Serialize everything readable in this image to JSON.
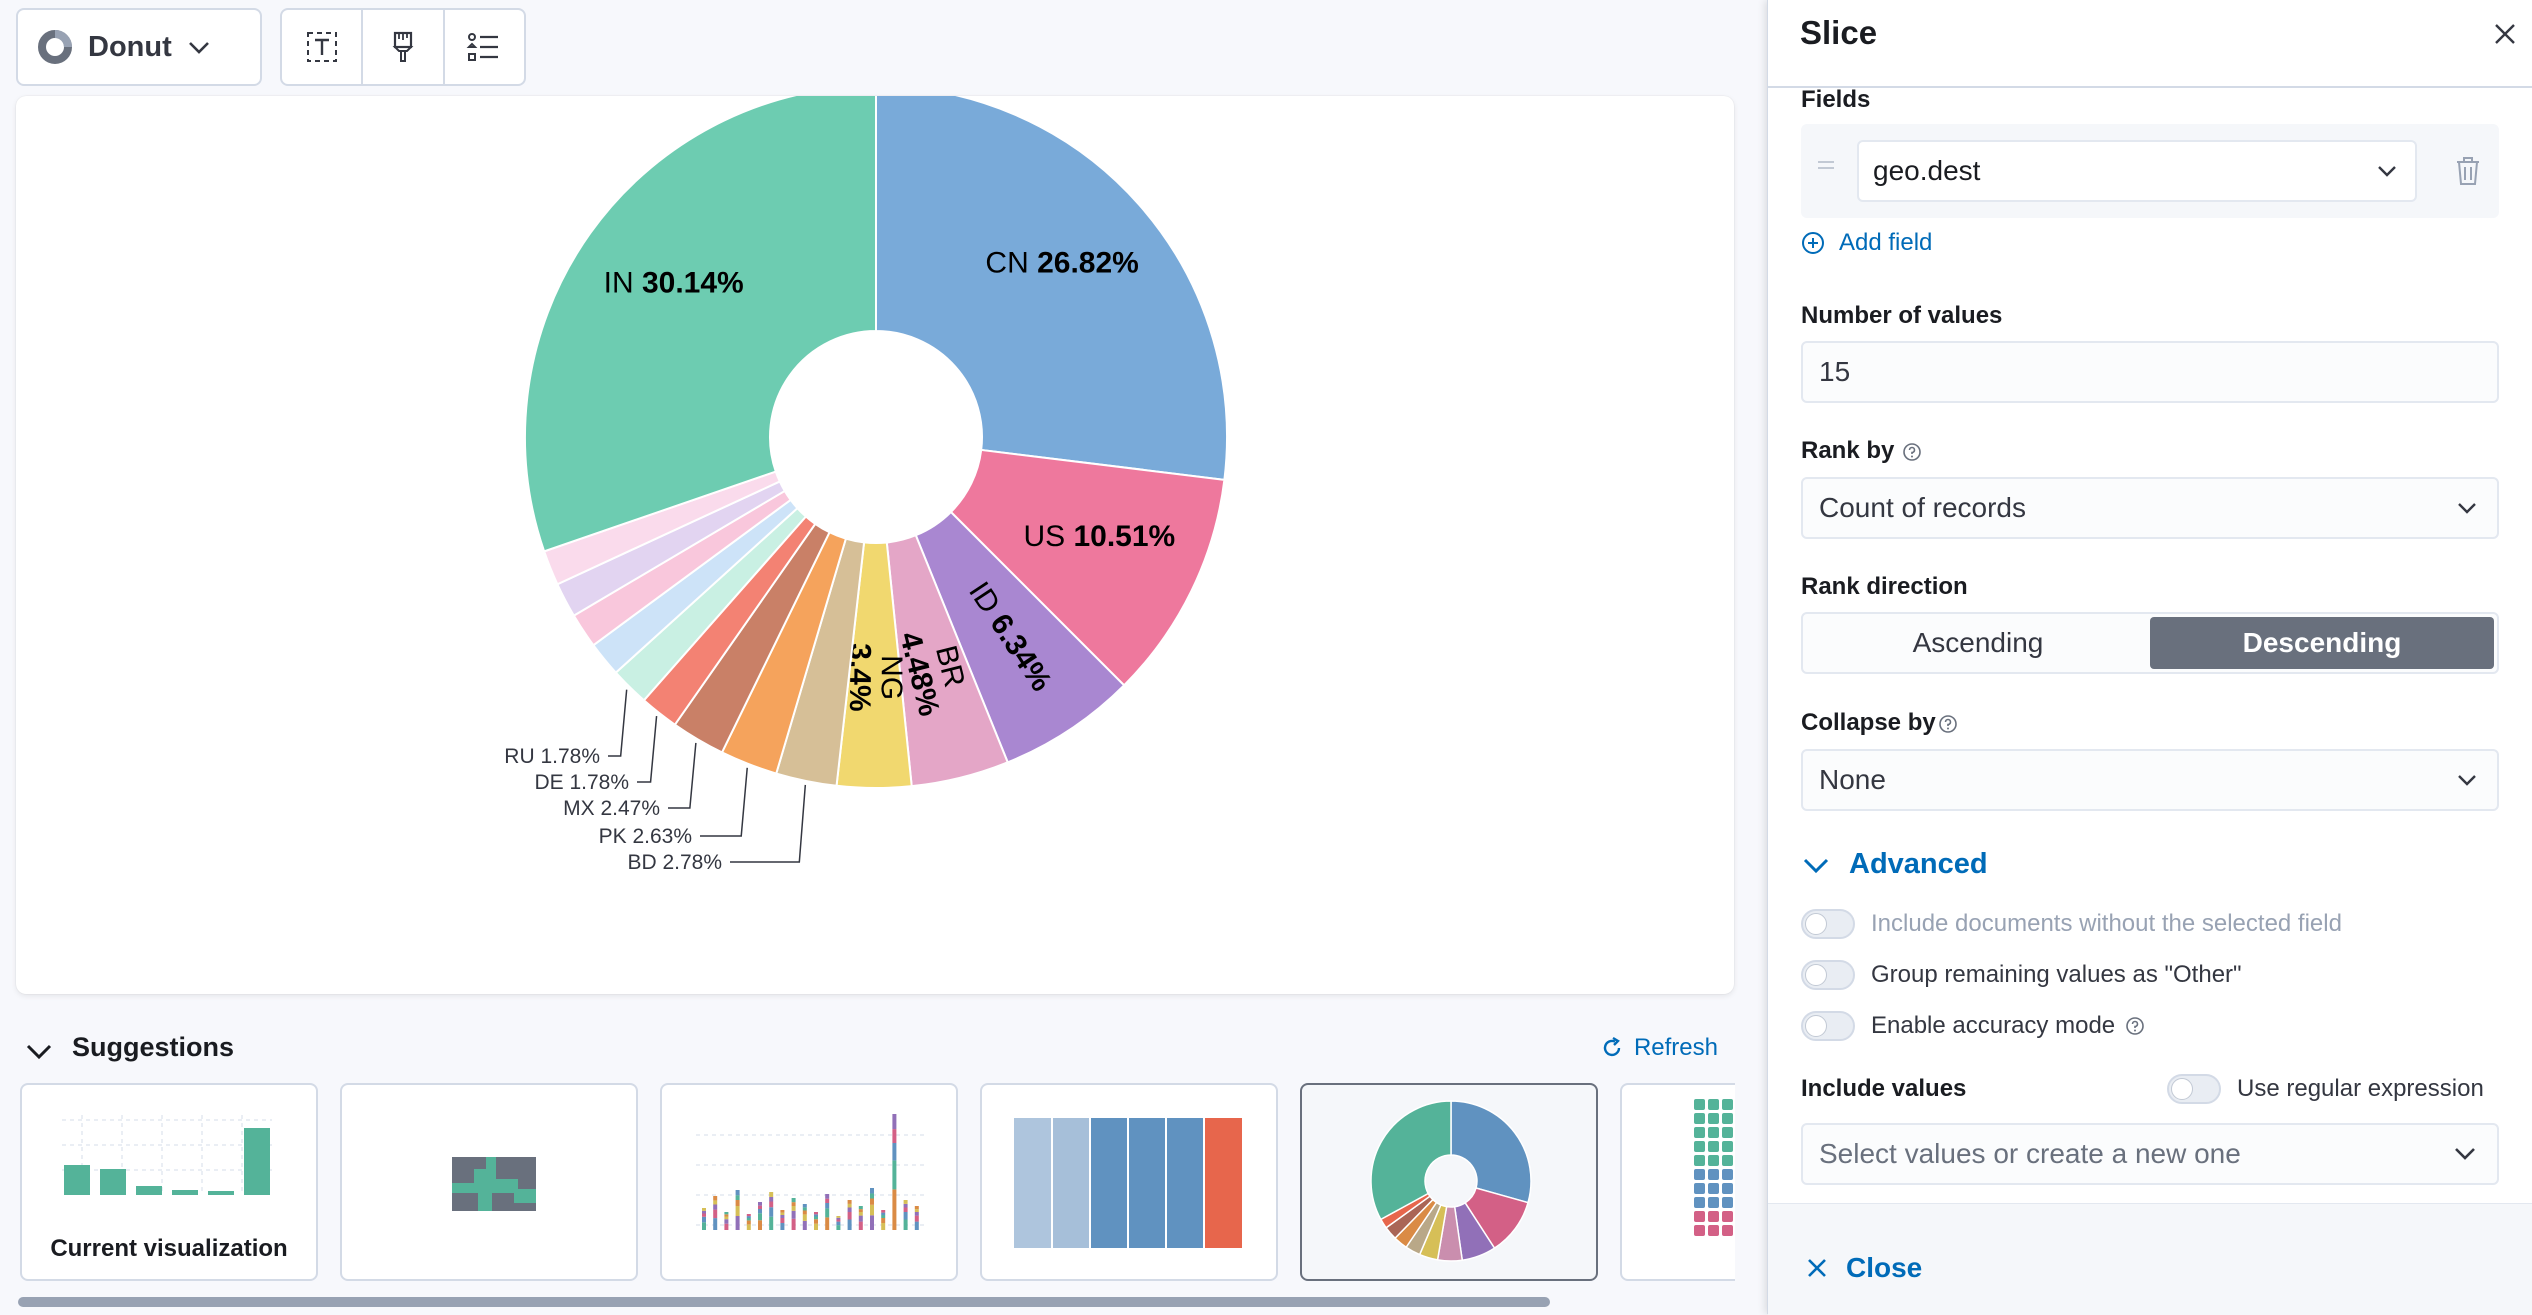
{
  "toolbar": {
    "chart_type_label": "Donut"
  },
  "chart_data": {
    "type": "pie",
    "variant": "donut",
    "slices": [
      {
        "label": "CN",
        "value": 26.82,
        "display": "26.82%",
        "color": "#79aad9"
      },
      {
        "label": "US",
        "value": 10.51,
        "display": "10.51%",
        "color": "#ee789d"
      },
      {
        "label": "ID",
        "value": 6.34,
        "display": "6.34%",
        "color": "#a987d1"
      },
      {
        "label": "BR",
        "value": 4.48,
        "display": "4.48%",
        "color": "#e4a6c7"
      },
      {
        "label": "NG",
        "value": 3.4,
        "display": "3.4%",
        "color": "#f1d86f"
      },
      {
        "label": "BD",
        "value": 2.78,
        "display": "2.78%",
        "color": "#d6bf97"
      },
      {
        "label": "PK",
        "value": 2.63,
        "display": "2.63%",
        "color": "#f5a35c"
      },
      {
        "label": "MX",
        "value": 2.47,
        "display": "2.47%",
        "color": "#c98067"
      },
      {
        "label": "DE",
        "value": 1.78,
        "display": "1.78%",
        "color": "#f38273"
      },
      {
        "label": "RU",
        "value": 1.78,
        "display": "1.78%",
        "color": "#c9f0e3"
      },
      {
        "label": "",
        "value": 1.6,
        "display": "",
        "color": "#cde3f8"
      },
      {
        "label": "",
        "value": 1.6,
        "display": "",
        "color": "#f9c7dc"
      },
      {
        "label": "",
        "value": 1.6,
        "display": "",
        "color": "#e2d4f1"
      },
      {
        "label": "",
        "value": 1.6,
        "display": "",
        "color": "#fadbec"
      },
      {
        "label": "IN",
        "value": 30.14,
        "display": "30.14%",
        "color": "#6dccb1"
      }
    ]
  },
  "suggestions": {
    "title": "Suggestions",
    "refresh_label": "Refresh",
    "items": [
      {
        "label": "Current visualization"
      }
    ]
  },
  "flyout": {
    "title": "Slice",
    "fields_label": "Fields",
    "field_value": "geo.dest",
    "add_field_label": "Add field",
    "number_of_values_label": "Number of values",
    "number_of_values": "15",
    "rank_by_label": "Rank by",
    "rank_by_value": "Count of records",
    "rank_direction_label": "Rank direction",
    "rank_direction_options": [
      "Ascending",
      "Descending"
    ],
    "collapse_by_label": "Collapse by",
    "collapse_by_value": "None",
    "advanced_label": "Advanced",
    "switch_missing": "Include documents without the selected field",
    "switch_other": "Group remaining values as \"Other\"",
    "switch_accuracy": "Enable accuracy mode",
    "include_values_label": "Include values",
    "regex_label": "Use regular expression",
    "include_values_placeholder": "Select values or create a new one",
    "close_label": "Close"
  },
  "colors": {
    "accent": "#006bb8",
    "selected_segment": "#69707d"
  }
}
